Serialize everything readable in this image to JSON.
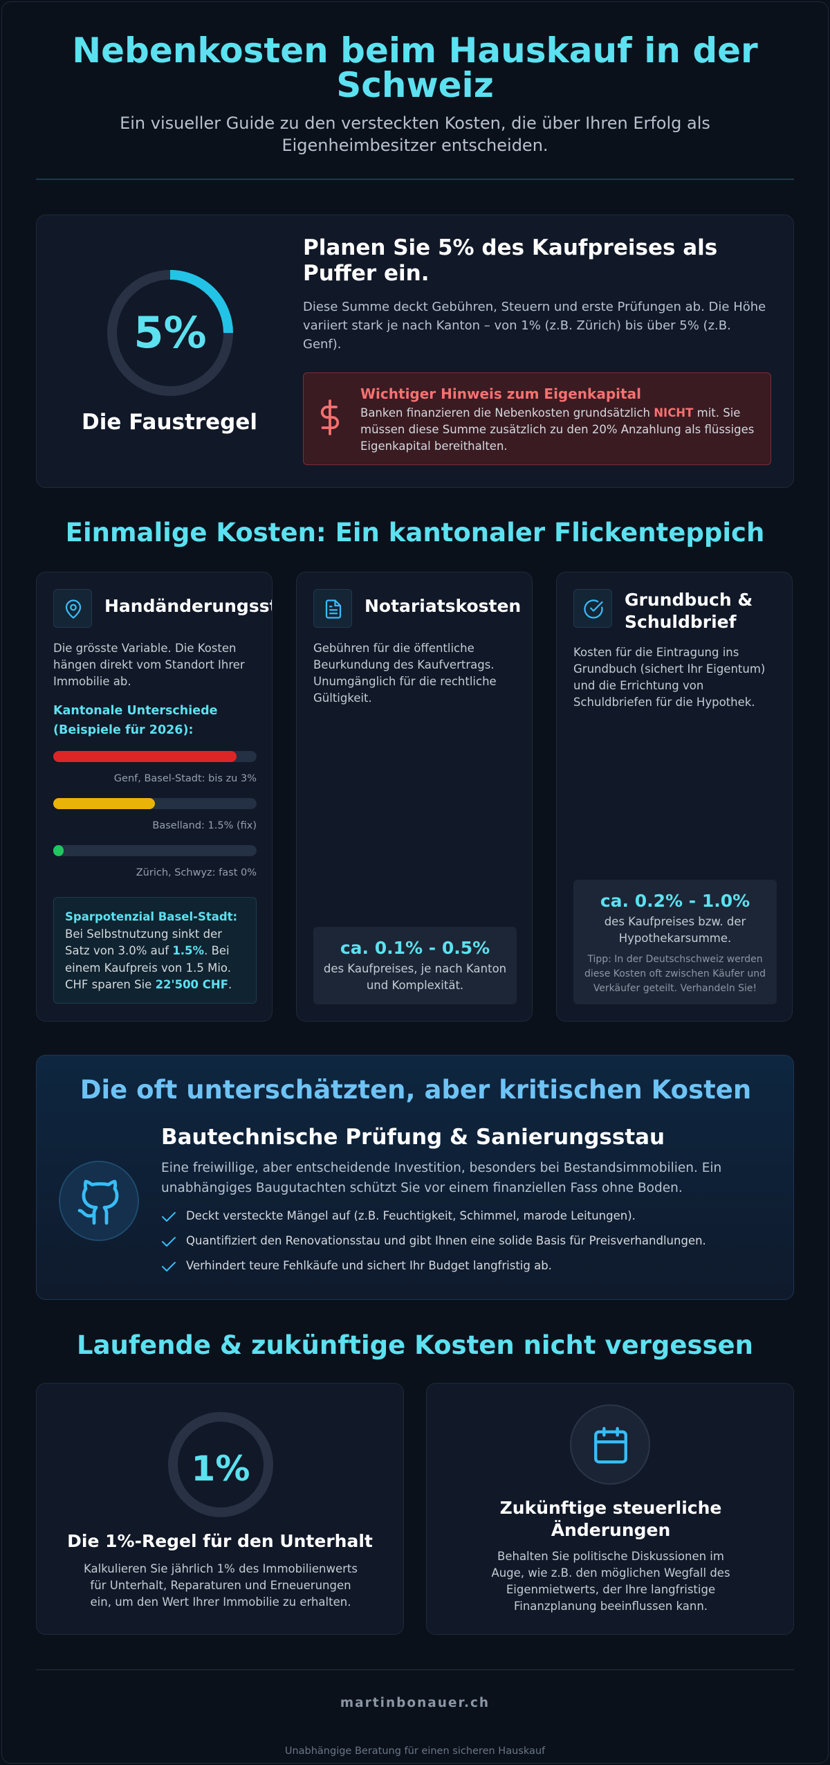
{
  "header": {
    "title": "Nebenkosten beim Hauskauf in der Schweiz",
    "subtitle": "Ein visueller Guide zu den versteckten Kosten, die über Ihren Erfolg als Eigenheimbesitzer entscheiden."
  },
  "rule_card": {
    "percent_text": "5%",
    "percent_value": 0.25,
    "label": "Die Faustregel",
    "heading": "Planen Sie 5% des Kaufpreises als Puffer ein.",
    "body": "Diese Summe deckt Gebühren, Steuern und erste Prüfungen ab. Die Höhe variiert stark je nach Kanton – von 1% (z.B. Zürich) bis über 5% (z.B. Genf).",
    "warning": {
      "icon": "dollar-icon",
      "title": "Wichtiger Hinweis zum Eigenkapital",
      "body_pre": "Banken finanzieren die Nebenkosten grundsätzlich ",
      "body_strong": "NICHT",
      "body_post": " mit. Sie müssen diese Summe zusätzlich zu den 20% Anzahlung als flüssiges Eigenkapital bereithalten."
    }
  },
  "one_time": {
    "section_title": "Einmalige Kosten: Ein kantonaler Flickenteppich",
    "transfer_tax": {
      "icon": "map-pin-icon",
      "title": "Handänderungssteuer",
      "description": "Die grösste Variable. Die Kosten hängen direkt vom Standort Ihrer Immobilie ab.",
      "subtitle": "Kantonale Unterschiede (Beispiele für 2026):",
      "bars": [
        {
          "label": "Genf, Basel-Stadt: bis zu 3%",
          "fill": 0.9,
          "color": "#dc2626"
        },
        {
          "label": "Baselland: 1.5% (fix)",
          "fill": 0.5,
          "color": "#eab308"
        },
        {
          "label": "Zürich, Schwyz: fast 0%",
          "fill": 0.05,
          "color": "#22c55e"
        }
      ],
      "savings": {
        "title": "Sparpotenzial Basel-Stadt:",
        "text_1": "Bei Selbstnutzung sinkt der Satz von 3.0% auf ",
        "highlight_1": "1.5%",
        "text_2": ". Bei einem Kaufpreis von 1.5 Mio. CHF sparen Sie ",
        "highlight_2": "22'500 CHF",
        "text_3": "."
      }
    },
    "notary": {
      "icon": "document-icon",
      "title": "Notariatskosten",
      "description": "Gebühren für die öffentliche Beurkundung des Kaufvertrags. Unumgänglich für die rechtliche Gültigkeit.",
      "price": "ca. 0.1% - 0.5%",
      "price_note": "des Kaufpreises, je nach Kanton und Komplexität."
    },
    "land_registry": {
      "icon": "check-circle-icon",
      "title": "Grundbuch & Schuldbrief",
      "description": "Kosten für die Eintragung ins Grundbuch (sichert Ihr Eigentum) und die Errichtung von Schuldbriefen für die Hypothek.",
      "price": "ca. 0.2% - 1.0%",
      "price_note": "des Kaufpreises bzw. der Hypothekarsumme.",
      "tip": "Tipp: In der Deutschschweiz werden diese Kosten oft zwischen Käufer und Verkäufer geteilt. Verhandeln Sie!"
    }
  },
  "critical": {
    "section_title": "Die oft unterschätzten, aber kritischen Kosten",
    "icon": "github-icon",
    "title": "Bautechnische Prüfung & Sanierungsstau",
    "description": "Eine freiwillige, aber entscheidende Investition, besonders bei Bestandsimmobilien. Ein unabhängiges Baugutachten schützt Sie vor einem finanziellen Fass ohne Boden.",
    "items": [
      "Deckt versteckte Mängel auf (z.B. Feuchtigkeit, Schimmel, marode Leitungen).",
      "Quantifiziert den Renovationsstau und gibt Ihnen eine solide Basis für Preisverhandlungen.",
      "Verhindert teure Fehlkäufe und sichert Ihr Budget langfristig ab."
    ]
  },
  "running": {
    "section_title": "Laufende & zukünftige Kosten nicht vergessen",
    "maintenance": {
      "percent_text": "1%",
      "title": "Die 1%-Regel für den Unterhalt",
      "description": "Kalkulieren Sie jährlich 1% des Immobilienwerts für Unterhalt, Reparaturen und Erneuerungen ein, um den Wert Ihrer Immobilie zu erhalten."
    },
    "tax": {
      "icon": "calendar-icon",
      "title": "Zukünftige steuerliche Änderungen",
      "description": "Behalten Sie politische Diskussionen im Auge, wie z.B. den möglichen Wegfall des Eigenmietwerts, der Ihre langfristige Finanzplanung beeinflussen kann."
    }
  },
  "footer": {
    "brand": "martinbonauer.ch",
    "tagline": "Unabhängige Beratung für einen sicheren Hauskauf"
  },
  "colors": {
    "accent": "#5ce1f0",
    "ring_track": "#283244",
    "ring_fill": "#22c3e6"
  }
}
